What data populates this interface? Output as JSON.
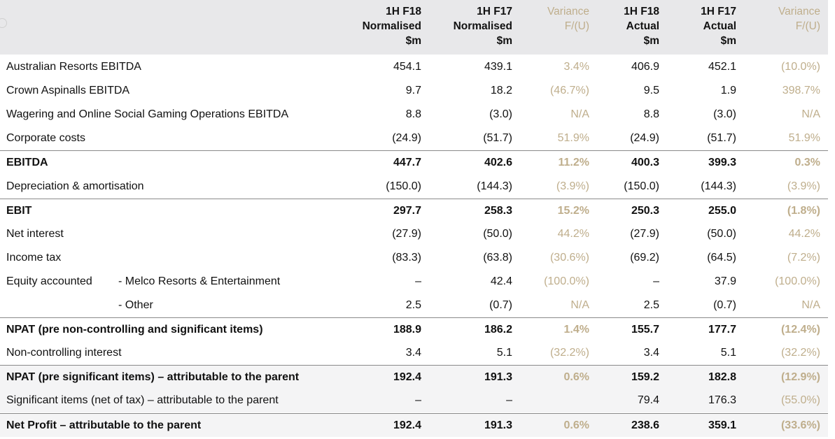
{
  "header": {
    "columns": [
      {
        "label": "1H F18\nNormalised\n$m",
        "kind": "value"
      },
      {
        "label": "1H F17\nNormalised\n$m",
        "kind": "value"
      },
      {
        "label": "Variance\nF/(U)",
        "kind": "variance"
      },
      {
        "label": "1H F18\nActual\n$m",
        "kind": "value"
      },
      {
        "label": "1H F17\nActual\n$m",
        "kind": "value"
      },
      {
        "label": "Variance\nF/(U)",
        "kind": "variance"
      }
    ]
  },
  "rows": [
    {
      "label": "Australian Resorts EBITDA",
      "sublabel": "",
      "bold": false,
      "values": [
        "454.1",
        "439.1",
        "3.4%",
        "406.9",
        "452.1",
        "(10.0%)"
      ]
    },
    {
      "label": "Crown Aspinalls EBITDA",
      "sublabel": "",
      "bold": false,
      "values": [
        "9.7",
        "18.2",
        "(46.7%)",
        "9.5",
        "1.9",
        "398.7%"
      ]
    },
    {
      "label": "Wagering and Online Social Gaming Operations EBITDA",
      "sublabel": "",
      "bold": false,
      "values": [
        "8.8",
        "(3.0)",
        "N/A",
        "8.8",
        "(3.0)",
        "N/A"
      ]
    },
    {
      "label": "Corporate costs",
      "sublabel": "",
      "bold": false,
      "values": [
        "(24.9)",
        "(51.7)",
        "51.9%",
        "(24.9)",
        "(51.7)",
        "51.9%"
      ]
    },
    {
      "label": "EBITDA",
      "sublabel": "",
      "bold": true,
      "values": [
        "447.7",
        "402.6",
        "11.2%",
        "400.3",
        "399.3",
        "0.3%"
      ]
    },
    {
      "label": "Depreciation & amortisation",
      "sublabel": "",
      "bold": false,
      "values": [
        "(150.0)",
        "(144.3)",
        "(3.9%)",
        "(150.0)",
        "(144.3)",
        "(3.9%)"
      ]
    },
    {
      "label": "EBIT",
      "sublabel": "",
      "bold": true,
      "values": [
        "297.7",
        "258.3",
        "15.2%",
        "250.3",
        "255.0",
        "(1.8%)"
      ]
    },
    {
      "label": "Net interest",
      "sublabel": "",
      "bold": false,
      "values": [
        "(27.9)",
        "(50.0)",
        "44.2%",
        "(27.9)",
        "(50.0)",
        "44.2%"
      ]
    },
    {
      "label": "Income tax",
      "sublabel": "",
      "bold": false,
      "values": [
        "(83.3)",
        "(63.8)",
        "(30.6%)",
        "(69.2)",
        "(64.5)",
        "(7.2%)"
      ]
    },
    {
      "label": "Equity accounted",
      "sublabel": "- Melco Resorts & Entertainment",
      "bold": false,
      "values": [
        "–",
        "42.4",
        "(100.0%)",
        "–",
        "37.9",
        "(100.0%)"
      ]
    },
    {
      "label": "",
      "sublabel": "- Other",
      "bold": false,
      "values": [
        "2.5",
        "(0.7)",
        "N/A",
        "2.5",
        "(0.7)",
        "N/A"
      ]
    },
    {
      "label": "NPAT (pre non-controlling and significant items)",
      "sublabel": "",
      "bold": true,
      "values": [
        "188.9",
        "186.2",
        "1.4%",
        "155.7",
        "177.7",
        "(12.4%)"
      ]
    },
    {
      "label": "Non-controlling interest",
      "sublabel": "",
      "bold": false,
      "values": [
        "3.4",
        "5.1",
        "(32.2%)",
        "3.4",
        "5.1",
        "(32.2%)"
      ]
    },
    {
      "label": "NPAT (pre significant items) – attributable to the parent",
      "sublabel": "",
      "bold": true,
      "values": [
        "192.4",
        "191.3",
        "0.6%",
        "159.2",
        "182.8",
        "(12.9%)"
      ]
    },
    {
      "label": "Significant items (net of tax) – attributable to the parent",
      "sublabel": "",
      "bold": false,
      "values": [
        "–",
        "–",
        "",
        "79.4",
        "176.3",
        "(55.0%)"
      ]
    },
    {
      "label": "Net Profit – attributable to the parent",
      "sublabel": "",
      "bold": true,
      "values": [
        "192.4",
        "191.3",
        "0.6%",
        "238.6",
        "359.1",
        "(33.6%)"
      ]
    }
  ],
  "colors": {
    "header_bg": "#e8e8ea",
    "variance_text": "#bfae8c",
    "divider": "#8a8a8a"
  }
}
